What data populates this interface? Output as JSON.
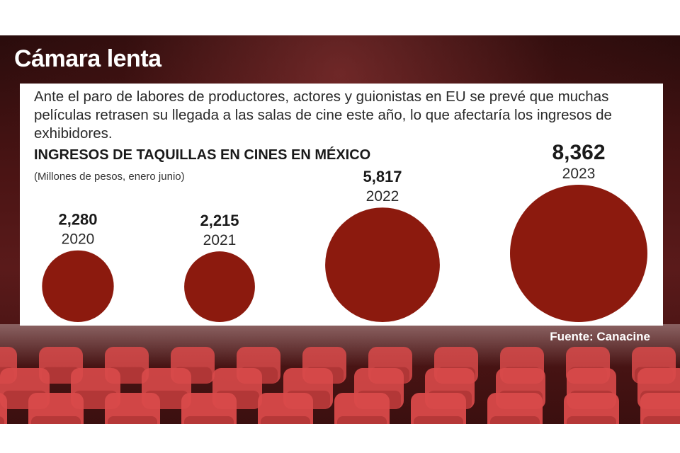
{
  "title": "Cámara lenta",
  "intro": "Ante el paro de labores de productores, actores y guionistas en EU se prevé que muchas películas retrasen su llegada a las salas de cine este año, lo que afectaría los ingresos de exhibidores.",
  "source": "Fuente: Canacine",
  "colors": {
    "bubble": "#8c1a0e",
    "seat": "#d94a4a",
    "seat_dark": "#a32e2e"
  },
  "chart_data": {
    "type": "bubble",
    "title": "INGRESOS DE TAQUILLAS EN CINES EN MÉXICO",
    "subtitle": "(Millones de pesos, enero junio)",
    "categories": [
      "2020",
      "2021",
      "2022",
      "2023"
    ],
    "values": [
      2280,
      2215,
      5817,
      8362
    ],
    "value_labels": [
      "2,280",
      "2,215",
      "5,817",
      "8,362"
    ]
  }
}
